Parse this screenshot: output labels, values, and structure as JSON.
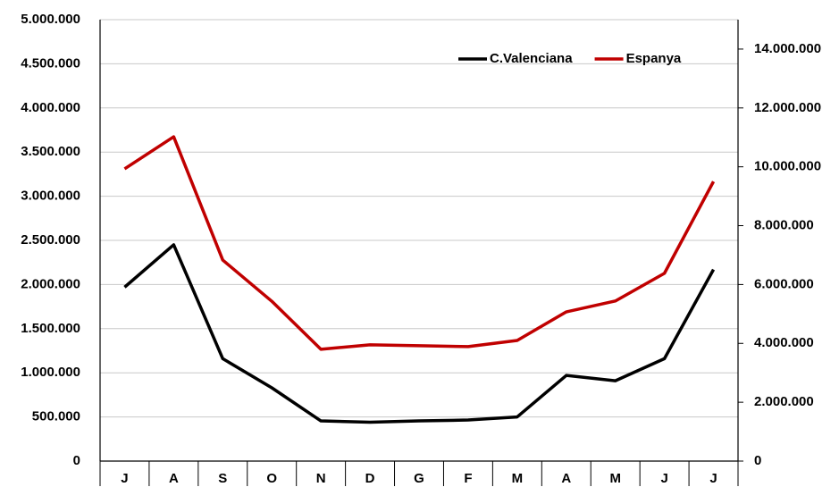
{
  "chart_data": {
    "type": "line",
    "categories": [
      "J",
      "A",
      "S",
      "O",
      "N",
      "D",
      "G",
      "F",
      "M",
      "A",
      "M",
      "J",
      "J"
    ],
    "series": [
      {
        "name": "C.Valenciana",
        "color": "#000000",
        "values": [
          1970000,
          2450000,
          1160000,
          830000,
          455000,
          440000,
          455000,
          465000,
          500000,
          970000,
          910000,
          1160000,
          2170000
        ]
      },
      {
        "name": "Espanya",
        "color": "#c00000",
        "axis": "y2",
        "values": [
          9930000,
          11020000,
          6830000,
          5430000,
          3800000,
          3950000,
          3920000,
          3890000,
          4100000,
          5070000,
          5440000,
          6380000,
          9500000
        ]
      }
    ],
    "ylim": [
      0,
      5000000
    ],
    "yticks": [
      0,
      {
        "value": 500000,
        "label": "500.000"
      },
      {
        "value": 1000000,
        "label": "1.000.000"
      },
      {
        "value": 1500000,
        "label": "1.500.000"
      },
      {
        "value": 2000000,
        "label": "2.000.000"
      },
      {
        "value": 2500000,
        "label": "2.500.000"
      },
      {
        "value": 3000000,
        "label": "3.000.000"
      },
      {
        "value": 3500000,
        "label": "3.500.000"
      },
      {
        "value": 4000000,
        "label": "4.000.000"
      },
      {
        "value": 4500000,
        "label": "4.500.000"
      },
      {
        "value": 5000000,
        "label": "5.000.000"
      }
    ],
    "y2lim": [
      0,
      15000000
    ],
    "y2ticks": [
      0,
      {
        "value": 2000000,
        "label": "2.000.000"
      },
      {
        "value": 4000000,
        "label": "4.000.000"
      },
      {
        "value": 6000000,
        "label": "6.000.000"
      },
      {
        "value": 8000000,
        "label": "8.000.000"
      },
      {
        "value": 10000000,
        "label": "10.000.000"
      },
      {
        "value": 12000000,
        "label": "12.000.000"
      },
      {
        "value": 14000000,
        "label": "14.000.000"
      }
    ],
    "grid": true,
    "legend": "top-right"
  }
}
